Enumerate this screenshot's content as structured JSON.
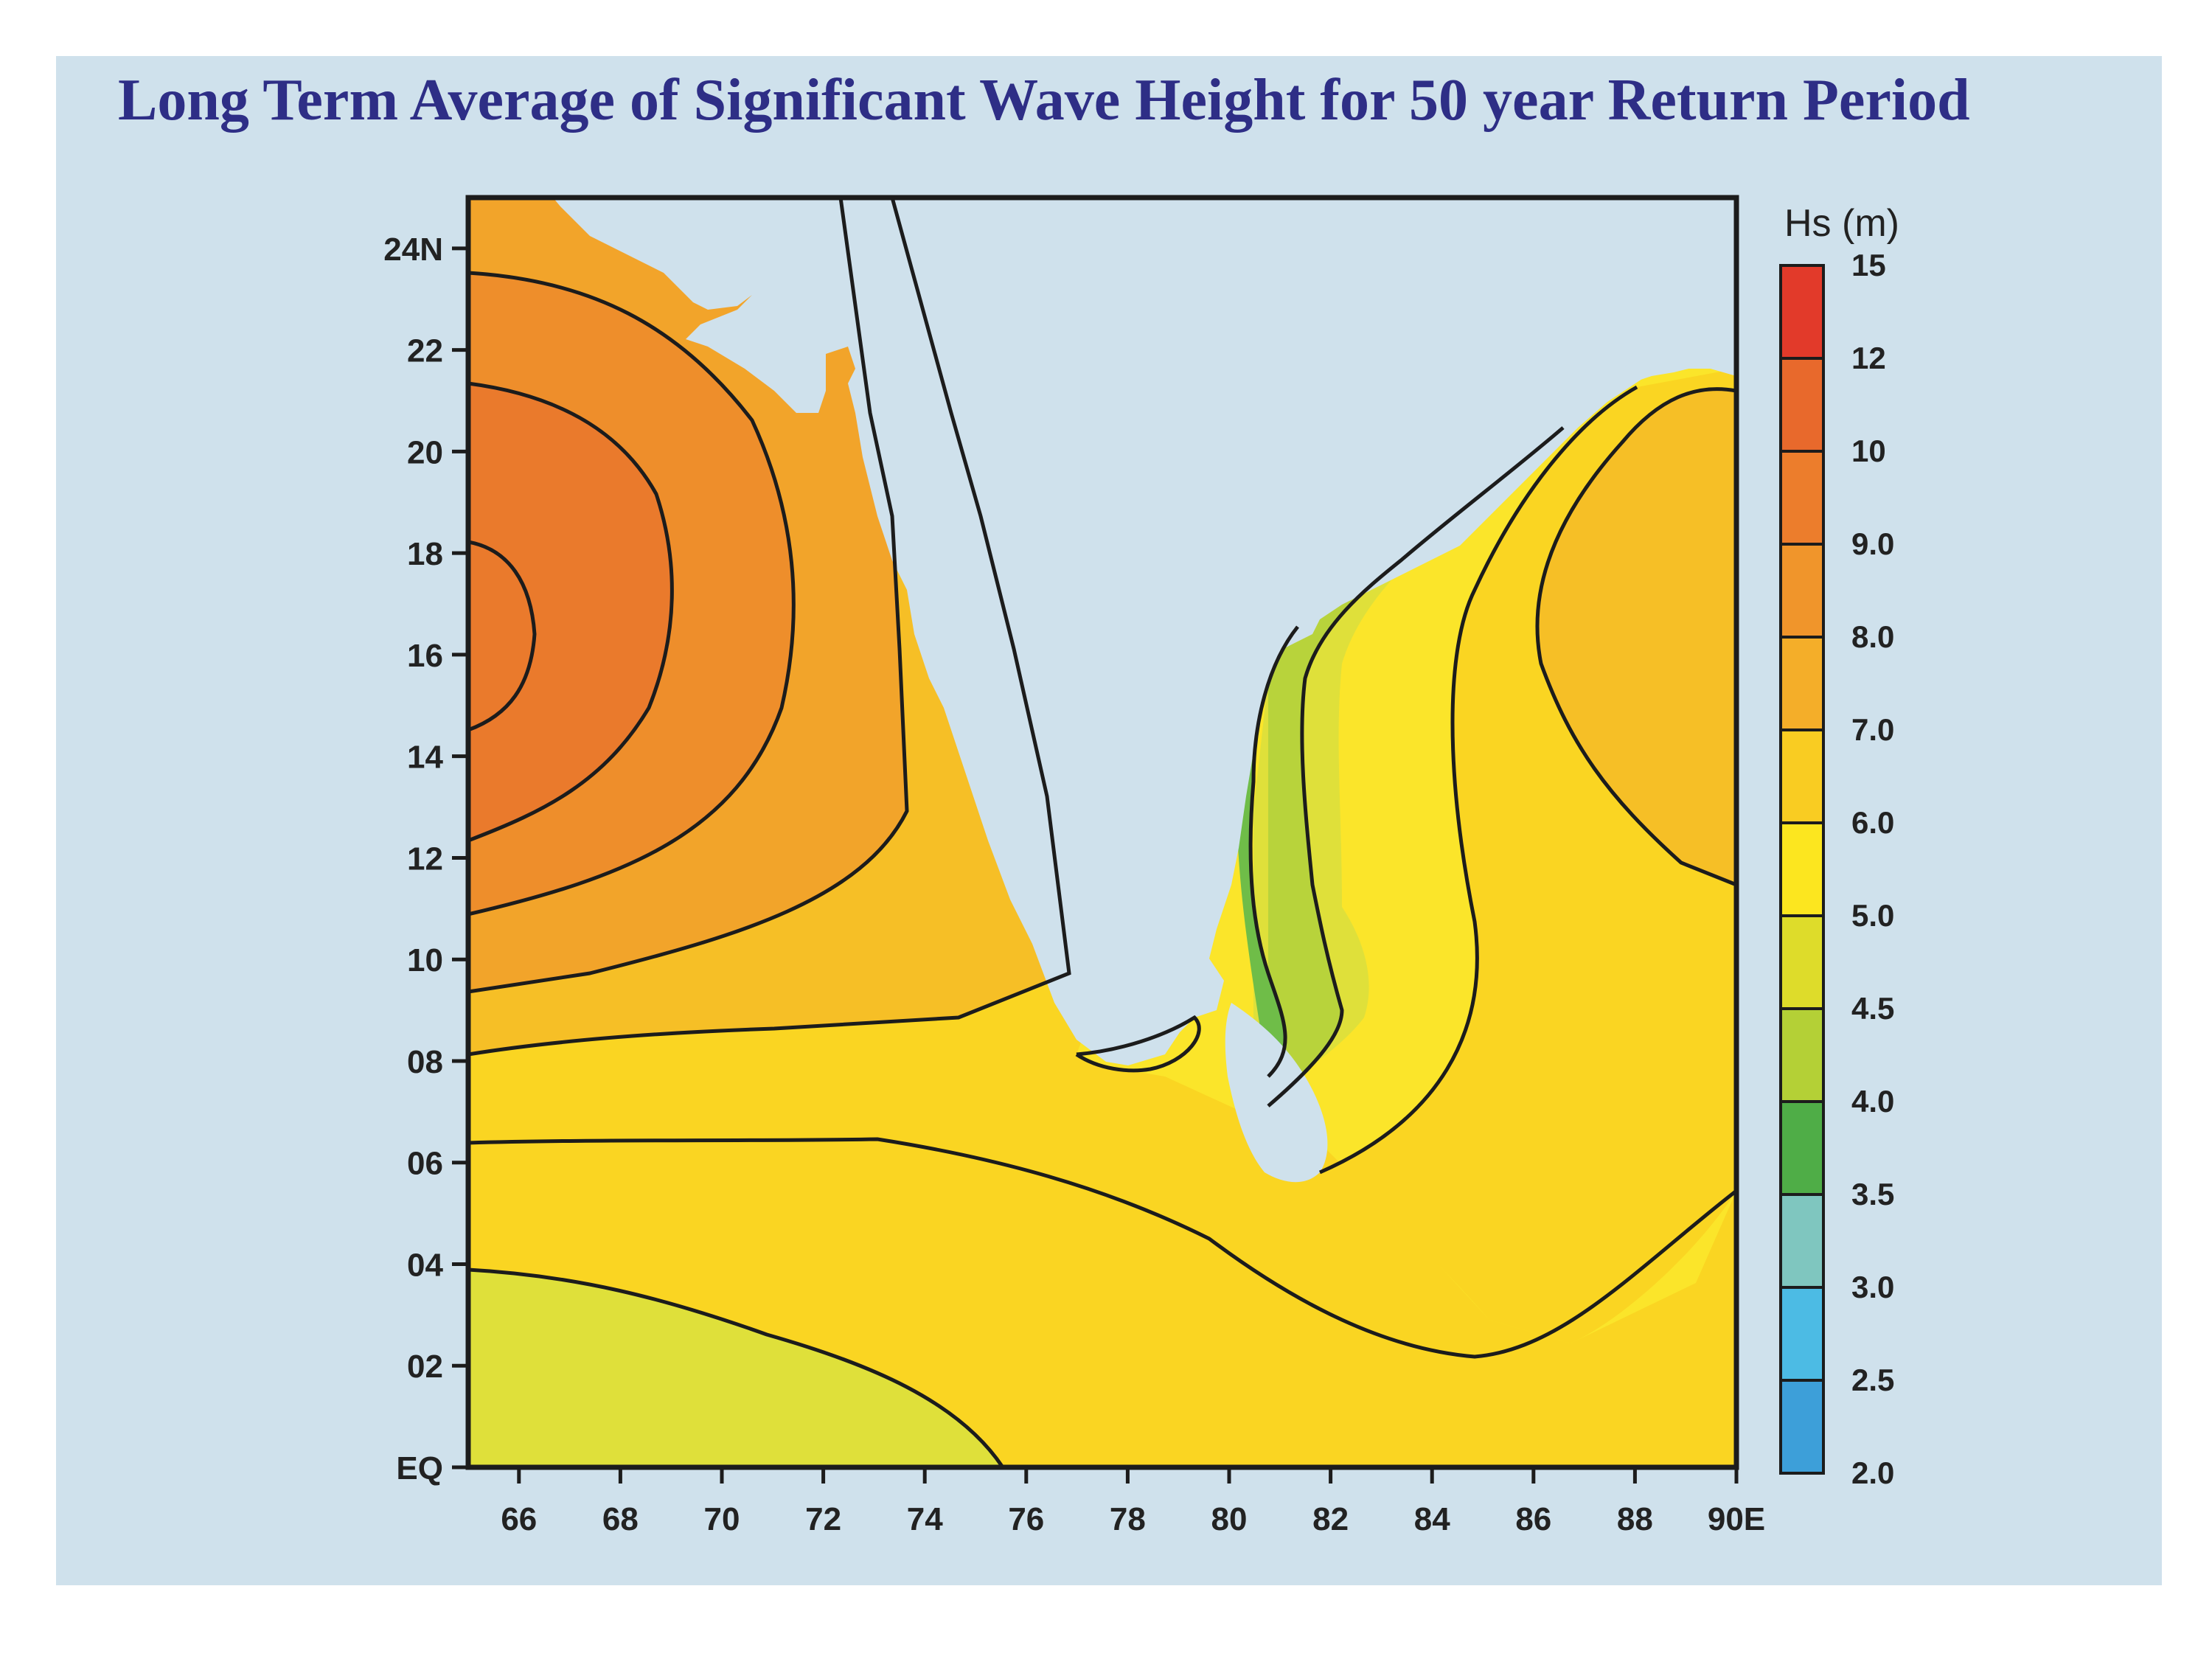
{
  "title": "Long Term Average of Significant Wave Height for 50 year Return Period",
  "map": {
    "lon_range": [
      65,
      90
    ],
    "lat_range": [
      0,
      25
    ],
    "x_ticks": [
      {
        "value": 66,
        "label": "66"
      },
      {
        "value": 68,
        "label": "68"
      },
      {
        "value": 70,
        "label": "70"
      },
      {
        "value": 72,
        "label": "72"
      },
      {
        "value": 74,
        "label": "74"
      },
      {
        "value": 76,
        "label": "76"
      },
      {
        "value": 78,
        "label": "78"
      },
      {
        "value": 80,
        "label": "80"
      },
      {
        "value": 82,
        "label": "82"
      },
      {
        "value": 84,
        "label": "84"
      },
      {
        "value": 86,
        "label": "86"
      },
      {
        "value": 88,
        "label": "88"
      },
      {
        "value": 90,
        "label": "90E"
      }
    ],
    "y_ticks": [
      {
        "value": 0,
        "label": "EQ"
      },
      {
        "value": 2,
        "label": "02"
      },
      {
        "value": 4,
        "label": "04"
      },
      {
        "value": 6,
        "label": "06"
      },
      {
        "value": 8,
        "label": "08"
      },
      {
        "value": 10,
        "label": "10"
      },
      {
        "value": 12,
        "label": "12"
      },
      {
        "value": 14,
        "label": "14"
      },
      {
        "value": 16,
        "label": "16"
      },
      {
        "value": 18,
        "label": "18"
      },
      {
        "value": 20,
        "label": "20"
      },
      {
        "value": 22,
        "label": "22"
      },
      {
        "value": 24,
        "label": "24N"
      }
    ],
    "colors": {
      "land": "#cfe1ec",
      "hs_10": "#ea7a2c",
      "hs_9": "#ee8e2b",
      "hs_8": "#f2a42a",
      "hs_7": "#f6bf26",
      "hs_6": "#fad522",
      "hs_5": "#fbe52a",
      "hs_45": "#dfe03a",
      "hs_4": "#b8d33b",
      "hs_35": "#6fbd48",
      "contour": "#1c1c1c"
    }
  },
  "legend": {
    "title": "Hs (m)",
    "bins": [
      {
        "label": "15",
        "color": "#e23a2a"
      },
      {
        "label": "12",
        "color": "#e8692c"
      },
      {
        "label": "10",
        "color": "#ec7d2c"
      },
      {
        "label": "9.0",
        "color": "#f0952b"
      },
      {
        "label": "8.0",
        "color": "#f4ae29"
      },
      {
        "label": "7.0",
        "color": "#f9cc22"
      },
      {
        "label": "6.0",
        "color": "#fce61f"
      },
      {
        "label": "5.0",
        "color": "#dedc2a"
      },
      {
        "label": "4.5",
        "color": "#b4d036"
      },
      {
        "label": "4.0",
        "color": "#4fad47"
      },
      {
        "label": "3.5",
        "color": "#7fc6bf"
      },
      {
        "label": "3.0",
        "color": "#4cbbe4"
      },
      {
        "label": "2.5",
        "color": "#3d9fd9"
      }
    ],
    "bottom_label": "2.0"
  }
}
